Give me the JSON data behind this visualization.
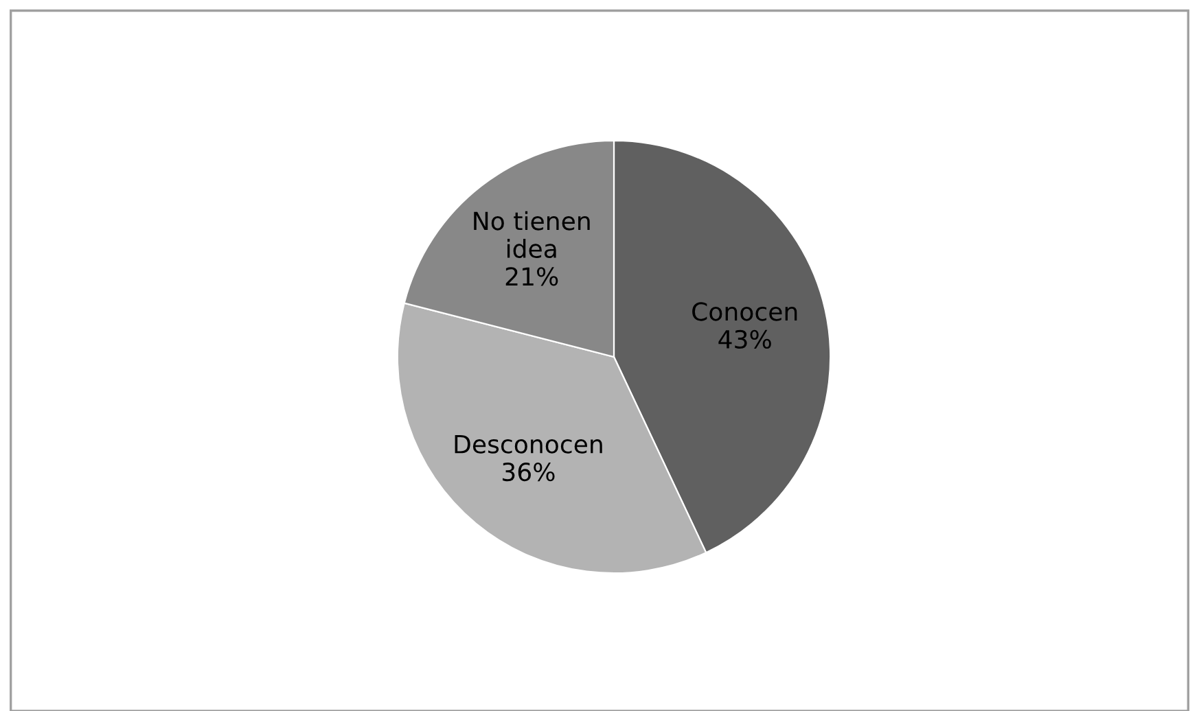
{
  "chart_data": {
    "type": "pie",
    "categories": [
      "Conocen",
      "Desconocen",
      "No tienen idea"
    ],
    "values": [
      43,
      36,
      21
    ],
    "value_labels": [
      "43%",
      "36%",
      "21%"
    ],
    "colors": [
      "#606060",
      "#b3b3b3",
      "#888888"
    ]
  }
}
